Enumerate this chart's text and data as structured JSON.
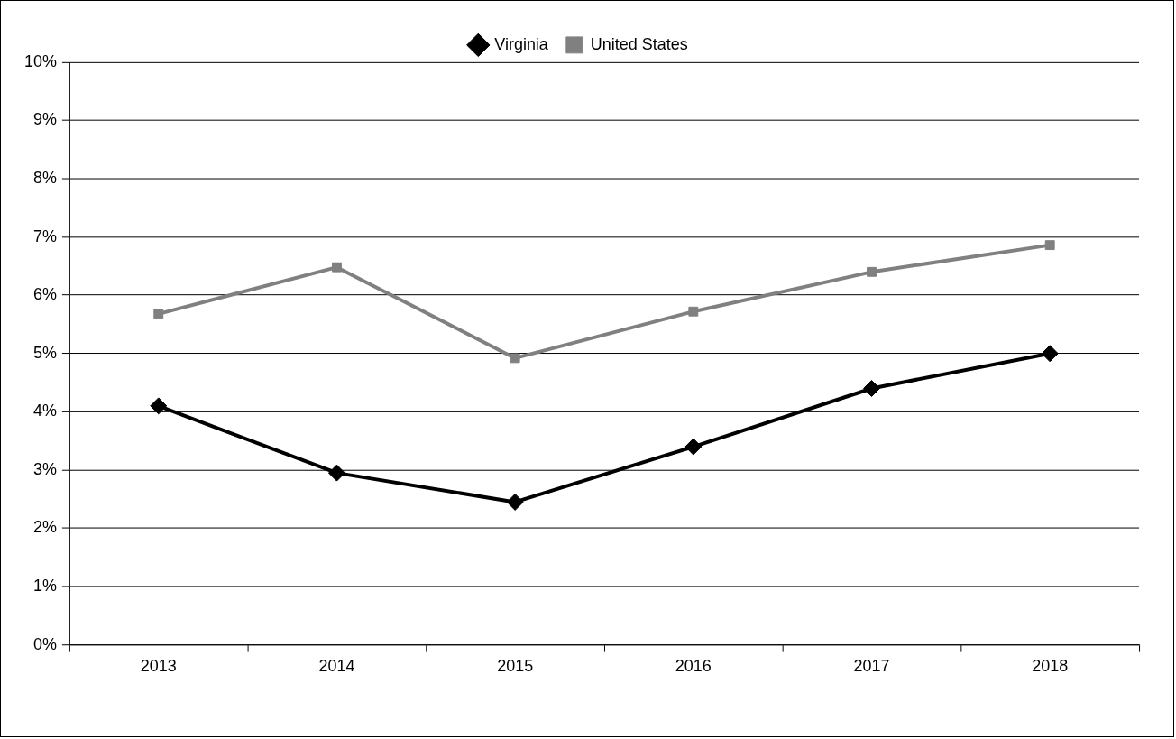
{
  "chart_data": {
    "type": "line",
    "categories": [
      "2013",
      "2014",
      "2015",
      "2016",
      "2017",
      "2018"
    ],
    "series": [
      {
        "name": "Virginia",
        "color": "#000000",
        "marker": "diamond",
        "values": [
          4.1,
          2.95,
          2.45,
          3.4,
          4.4,
          5.0
        ]
      },
      {
        "name": "United States",
        "color": "#808080",
        "marker": "square",
        "values": [
          5.68,
          6.48,
          4.92,
          5.72,
          6.4,
          6.86
        ]
      }
    ],
    "ylim": [
      0,
      10
    ],
    "yticks": [
      {
        "value": 0,
        "label": "0%"
      },
      {
        "value": 1,
        "label": "1%"
      },
      {
        "value": 2,
        "label": "2%"
      },
      {
        "value": 3,
        "label": "3%"
      },
      {
        "value": 4,
        "label": "4%"
      },
      {
        "value": 5,
        "label": "5%"
      },
      {
        "value": 6,
        "label": "6%"
      },
      {
        "value": 7,
        "label": "7%"
      },
      {
        "value": 8,
        "label": "8%"
      },
      {
        "value": 9,
        "label": "9%"
      },
      {
        "value": 10,
        "label": "10%"
      }
    ],
    "grid": "y",
    "legend": "top",
    "line_style": "solid"
  }
}
